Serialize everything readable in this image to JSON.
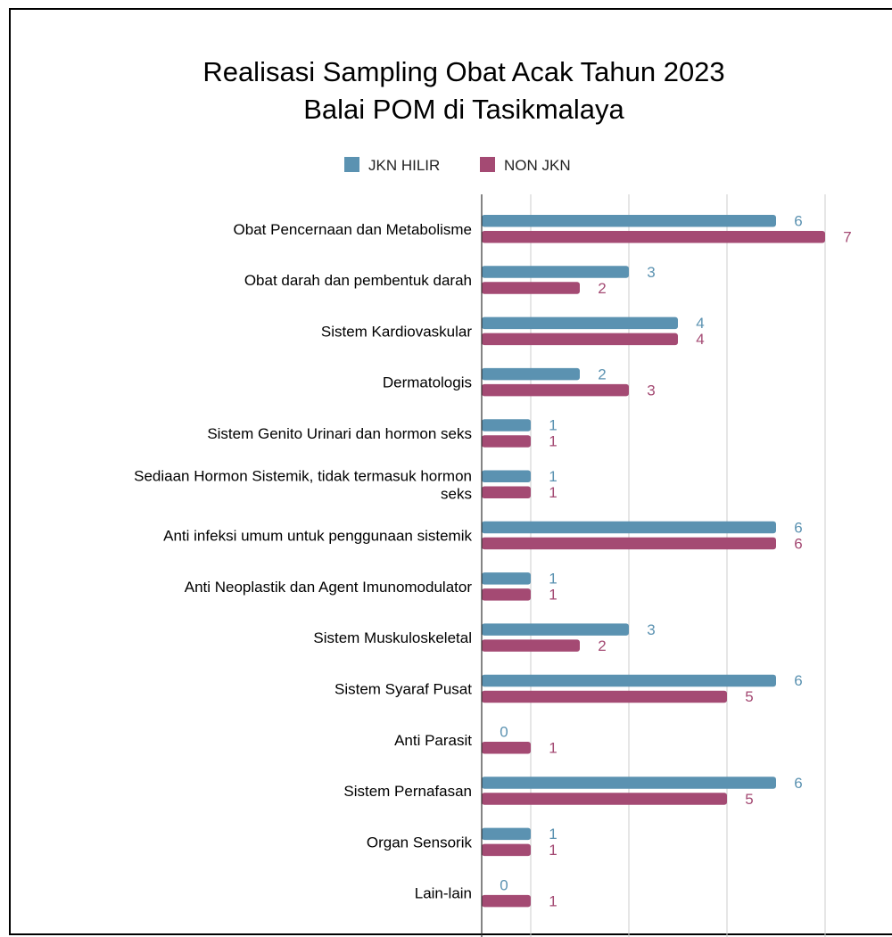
{
  "chart_data": {
    "type": "bar",
    "orientation": "horizontal",
    "title": [
      "Realisasi Sampling Obat Acak Tahun 2023",
      "Balai POM di Tasikmalaya"
    ],
    "legend_position": "top",
    "grid": true,
    "xlim": [
      0,
      8
    ],
    "categories": [
      [
        "Obat Pencernaan dan Metabolisme"
      ],
      [
        "Obat darah dan pembentuk darah"
      ],
      [
        "Sistem Kardiovaskular"
      ],
      [
        "Dermatologis"
      ],
      [
        "Sistem Genito Urinari dan hormon seks"
      ],
      [
        "Sediaan Hormon Sistemik, tidak termasuk hormon",
        "seks"
      ],
      [
        "Anti infeksi umum untuk penggunaan sistemik"
      ],
      [
        "Anti Neoplastik dan Agent Imunomodulator"
      ],
      [
        "Sistem Muskuloskeletal"
      ],
      [
        "Sistem Syaraf Pusat"
      ],
      [
        "Anti Parasit"
      ],
      [
        "Sistem Pernafasan"
      ],
      [
        "Organ Sensorik"
      ],
      [
        "Lain-lain"
      ]
    ],
    "series": [
      {
        "name": "JKN HILIR",
        "color": "#5b92b1",
        "values": [
          6,
          3,
          4,
          2,
          1,
          1,
          6,
          1,
          3,
          6,
          0,
          6,
          1,
          0
        ]
      },
      {
        "name": "NON JKN",
        "color": "#a44a73",
        "values": [
          7,
          2,
          4,
          3,
          1,
          1,
          6,
          1,
          2,
          5,
          1,
          5,
          1,
          1
        ]
      }
    ]
  }
}
